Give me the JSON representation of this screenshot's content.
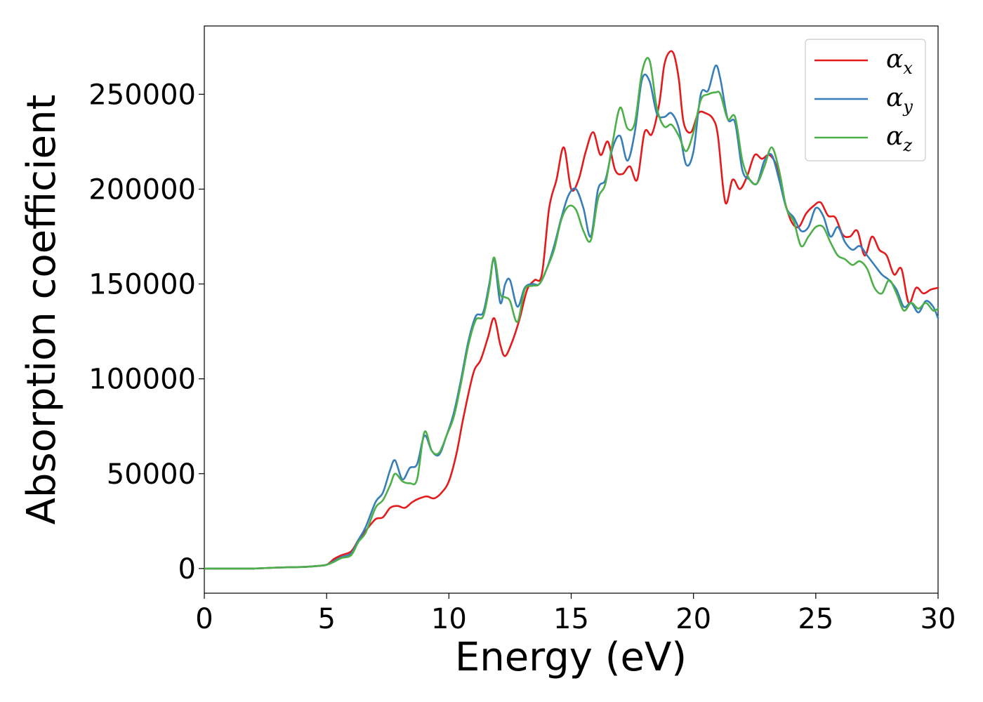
{
  "chart_data": {
    "type": "line",
    "xlabel": "Energy (eV)",
    "ylabel": "Absorption coefficient",
    "xlim": [
      0,
      30
    ],
    "ylim": [
      -13000,
      286000
    ],
    "xticks": [
      0,
      5,
      10,
      15,
      20,
      25,
      30
    ],
    "yticks": [
      0,
      50000,
      100000,
      150000,
      200000,
      250000
    ],
    "grid": false,
    "legend": "top-right",
    "series": [
      {
        "name": "αx",
        "legend_symbol": "α",
        "legend_subscript": "x",
        "color": "#e41a1c",
        "x": [
          0,
          1,
          2,
          3,
          4,
          4.5,
          5,
          5.3,
          5.6,
          6,
          6.3,
          6.6,
          7,
          7.3,
          7.6,
          7.9,
          8.2,
          8.5,
          8.8,
          9.1,
          9.4,
          9.7,
          10,
          10.3,
          10.6,
          11,
          11.3,
          11.6,
          11.85,
          12.1,
          12.3,
          12.6,
          12.9,
          13.2,
          13.5,
          13.8,
          14.1,
          14.4,
          14.7,
          15,
          15.3,
          15.6,
          15.9,
          16.2,
          16.5,
          16.8,
          17.1,
          17.4,
          17.7,
          18,
          18.3,
          18.6,
          18.8,
          19,
          19.2,
          19.4,
          19.6,
          19.9,
          20.2,
          20.5,
          20.8,
          21,
          21.3,
          21.6,
          21.9,
          22.2,
          22.5,
          22.8,
          23.1,
          23.4,
          23.7,
          24,
          24.3,
          24.6,
          24.9,
          25.2,
          25.5,
          25.8,
          26.1,
          26.4,
          26.7,
          27,
          27.3,
          27.6,
          27.9,
          28.2,
          28.5,
          28.8,
          29.1,
          29.4,
          29.7,
          30
        ],
        "y": [
          0,
          0,
          0,
          500,
          800,
          1200,
          2000,
          5000,
          7000,
          9000,
          15000,
          20000,
          26000,
          27000,
          32000,
          33000,
          32000,
          35000,
          37000,
          38000,
          37000,
          40000,
          46000,
          60000,
          80000,
          103000,
          110000,
          122000,
          132000,
          118000,
          112000,
          120000,
          132000,
          147000,
          152000,
          155000,
          190000,
          205000,
          222000,
          200000,
          205000,
          220000,
          230000,
          218000,
          225000,
          210000,
          208000,
          212000,
          205000,
          230000,
          229000,
          245000,
          265000,
          272000,
          271000,
          258000,
          235000,
          230000,
          240000,
          240000,
          237000,
          228000,
          193000,
          205000,
          200000,
          207000,
          218000,
          216000,
          218000,
          212000,
          195000,
          183000,
          180000,
          187000,
          191000,
          193000,
          186000,
          185000,
          176000,
          175000,
          178000,
          165000,
          175000,
          168000,
          165000,
          155000,
          158000,
          140000,
          148000,
          145000,
          147000,
          148000
        ]
      },
      {
        "name": "αy",
        "legend_symbol": "α",
        "legend_subscript": "y",
        "color": "#377eb8",
        "x": [
          0,
          1,
          2,
          3,
          4,
          4.5,
          5,
          5.3,
          5.6,
          6,
          6.3,
          6.6,
          7,
          7.3,
          7.6,
          7.8,
          8.1,
          8.4,
          8.7,
          9,
          9.3,
          9.6,
          9.9,
          10.2,
          10.5,
          10.8,
          11.1,
          11.4,
          11.65,
          11.85,
          12.1,
          12.3,
          12.5,
          12.8,
          13.1,
          13.4,
          13.7,
          14,
          14.3,
          14.6,
          14.9,
          15.2,
          15.5,
          15.8,
          16.1,
          16.4,
          16.7,
          17,
          17.3,
          17.6,
          17.9,
          18.2,
          18.5,
          18.8,
          19.1,
          19.4,
          19.7,
          20,
          20.3,
          20.6,
          20.9,
          21.1,
          21.4,
          21.7,
          22,
          22.3,
          22.6,
          22.9,
          23.2,
          23.5,
          23.8,
          24.1,
          24.4,
          24.7,
          25,
          25.3,
          25.6,
          25.9,
          26.2,
          26.5,
          26.8,
          27.1,
          27.4,
          27.7,
          28,
          28.3,
          28.6,
          28.9,
          29.2,
          29.5,
          29.8,
          30
        ],
        "y": [
          0,
          0,
          0,
          500,
          800,
          1200,
          2000,
          4000,
          6000,
          8000,
          15000,
          22000,
          35000,
          40000,
          52000,
          57000,
          47000,
          53000,
          55000,
          70000,
          62000,
          60000,
          70000,
          82000,
          100000,
          120000,
          133000,
          135000,
          150000,
          163000,
          140000,
          150000,
          152000,
          138000,
          148000,
          150000,
          150000,
          158000,
          170000,
          185000,
          197000,
          200000,
          190000,
          175000,
          200000,
          205000,
          222000,
          228000,
          215000,
          230000,
          258000,
          257000,
          240000,
          238000,
          240000,
          232000,
          213000,
          220000,
          250000,
          252000,
          265000,
          258000,
          237000,
          235000,
          210000,
          205000,
          203000,
          215000,
          218000,
          205000,
          190000,
          185000,
          178000,
          180000,
          190000,
          186000,
          175000,
          180000,
          172000,
          168000,
          170000,
          165000,
          160000,
          155000,
          152000,
          147000,
          138000,
          140000,
          135000,
          141000,
          138000,
          132000
        ]
      },
      {
        "name": "αz",
        "legend_symbol": "α",
        "legend_subscript": "z",
        "color": "#4daf4a",
        "x": [
          0,
          1,
          2,
          3,
          4,
          4.5,
          5,
          5.3,
          5.6,
          6,
          6.3,
          6.6,
          7,
          7.3,
          7.6,
          7.8,
          8.1,
          8.4,
          8.7,
          9,
          9.3,
          9.6,
          9.9,
          10.2,
          10.5,
          10.8,
          11.1,
          11.4,
          11.65,
          11.85,
          12.1,
          12.3,
          12.5,
          12.8,
          13.1,
          13.4,
          13.7,
          14,
          14.3,
          14.6,
          14.9,
          15.2,
          15.5,
          15.8,
          16.1,
          16.4,
          16.7,
          17,
          17.3,
          17.6,
          17.9,
          18.2,
          18.5,
          18.8,
          19.1,
          19.4,
          19.7,
          20,
          20.3,
          20.6,
          20.9,
          21.1,
          21.4,
          21.7,
          22,
          22.3,
          22.6,
          22.9,
          23.2,
          23.5,
          23.8,
          24.1,
          24.4,
          24.7,
          25,
          25.3,
          25.6,
          25.9,
          26.2,
          26.5,
          26.8,
          27.1,
          27.4,
          27.7,
          28,
          28.3,
          28.6,
          28.9,
          29.2,
          29.5,
          29.8,
          30
        ],
        "y": [
          0,
          0,
          0,
          500,
          800,
          1200,
          2000,
          3500,
          5500,
          7000,
          14000,
          19000,
          32000,
          36000,
          44000,
          50000,
          46000,
          45000,
          47000,
          72000,
          62000,
          61000,
          70000,
          80000,
          98000,
          118000,
          131000,
          133000,
          148000,
          164000,
          145000,
          143000,
          141000,
          130000,
          147000,
          149000,
          150000,
          158000,
          168000,
          184000,
          191000,
          189000,
          178000,
          173000,
          195000,
          203000,
          225000,
          243000,
          232000,
          235000,
          262000,
          268000,
          243000,
          233000,
          234000,
          228000,
          220000,
          230000,
          247000,
          250000,
          251000,
          250000,
          237000,
          238000,
          215000,
          205000,
          203000,
          212000,
          222000,
          210000,
          190000,
          183000,
          170000,
          175000,
          180000,
          180000,
          172000,
          165000,
          163000,
          160000,
          162000,
          158000,
          148000,
          145000,
          152000,
          145000,
          136000,
          140000,
          137000,
          140000,
          136000,
          137000
        ]
      }
    ]
  }
}
